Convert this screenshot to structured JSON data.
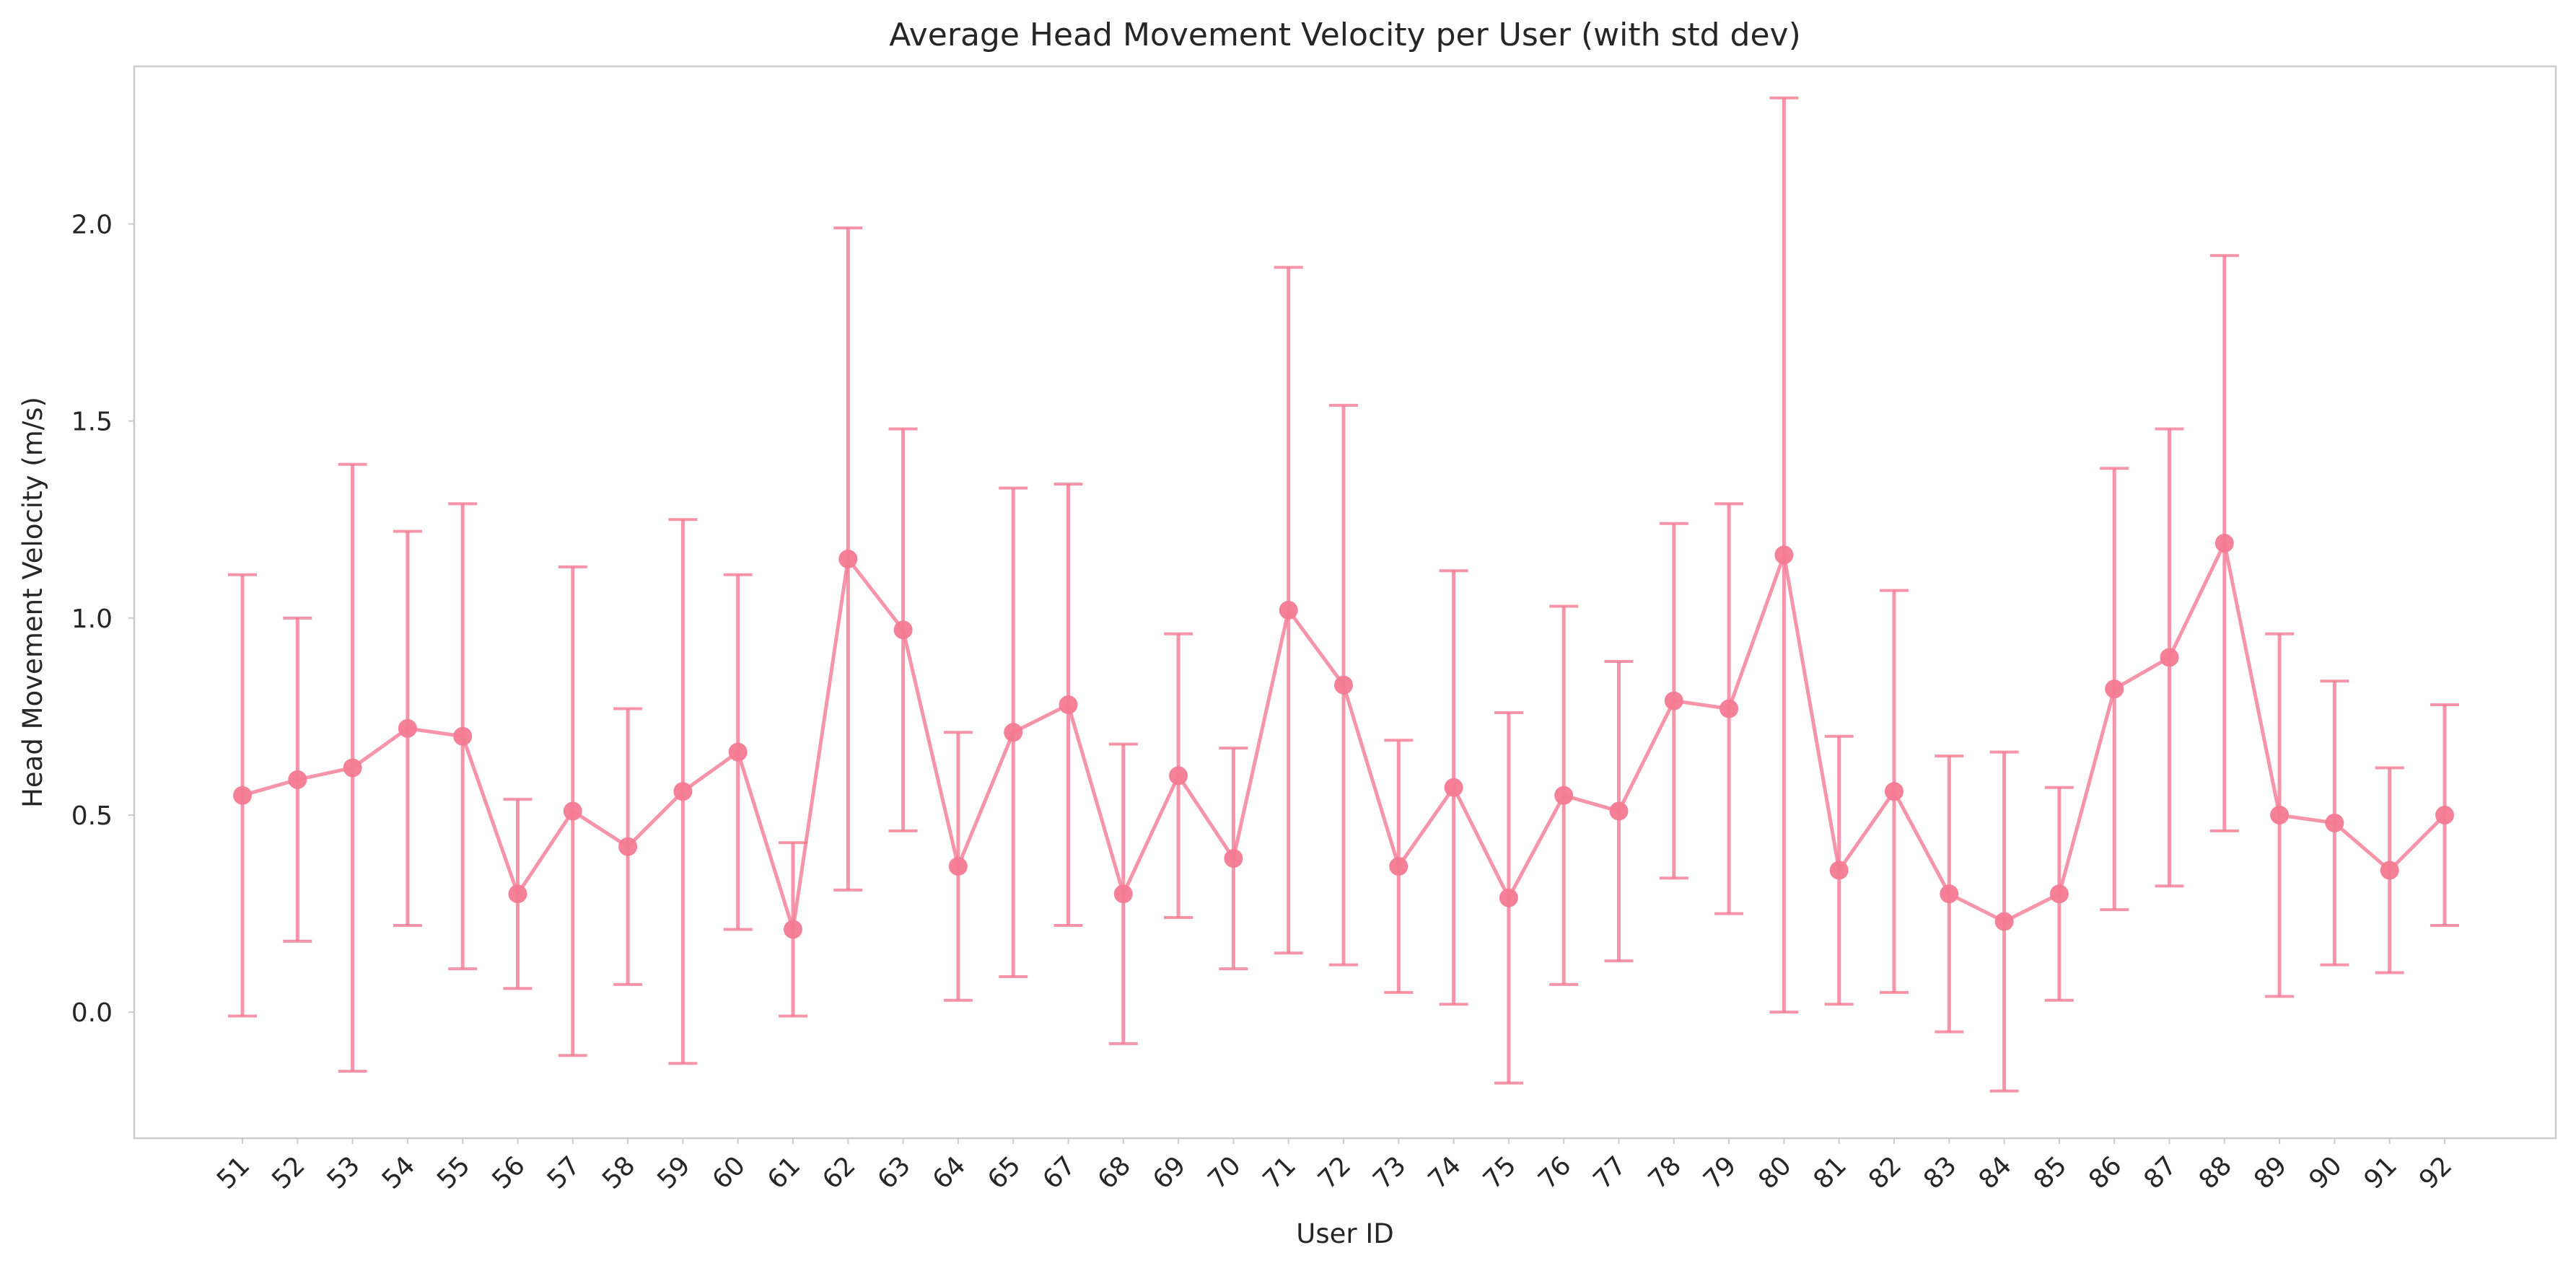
{
  "chart_data": {
    "type": "line",
    "title": "Average Head Movement Velocity per User (with std dev)",
    "xlabel": "User ID",
    "ylabel": "Head Movement Velocity (m/s)",
    "ylim": [
      -0.32,
      2.4
    ],
    "yticks": [
      "0.0",
      "0.5",
      "1.0",
      "1.5",
      "2.0"
    ],
    "ytick_values": [
      0.0,
      0.5,
      1.0,
      1.5,
      2.0
    ],
    "grid": false,
    "legend": "none",
    "colors": {
      "series": "#f47a93",
      "frame": "#cccccc"
    },
    "categories": [
      "51",
      "52",
      "53",
      "54",
      "55",
      "56",
      "57",
      "58",
      "59",
      "60",
      "61",
      "62",
      "63",
      "64",
      "65",
      "67",
      "68",
      "69",
      "70",
      "71",
      "72",
      "73",
      "74",
      "75",
      "76",
      "77",
      "78",
      "79",
      "80",
      "81",
      "82",
      "83",
      "84",
      "85",
      "86",
      "87",
      "88",
      "89",
      "90",
      "91",
      "92"
    ],
    "series": [
      {
        "values": [
          0.55,
          0.59,
          0.62,
          0.72,
          0.7,
          0.3,
          0.51,
          0.42,
          0.56,
          0.66,
          0.21,
          1.15,
          0.97,
          0.37,
          0.71,
          0.78,
          0.3,
          0.6,
          0.39,
          1.02,
          0.83,
          0.37,
          0.57,
          0.29,
          0.55,
          0.51,
          0.79,
          0.77,
          1.16,
          0.36,
          0.56,
          0.3,
          0.23,
          0.3,
          0.82,
          0.9,
          1.19,
          0.5,
          0.48,
          0.36,
          0.5
        ],
        "std": [
          0.56,
          0.41,
          0.77,
          0.5,
          0.59,
          0.24,
          0.62,
          0.35,
          0.69,
          0.45,
          0.22,
          0.84,
          0.51,
          0.34,
          0.62,
          0.56,
          0.38,
          0.36,
          0.28,
          0.87,
          0.71,
          0.32,
          0.55,
          0.47,
          0.48,
          0.38,
          0.45,
          0.52,
          1.16,
          0.34,
          0.51,
          0.35,
          0.43,
          0.27,
          0.56,
          0.58,
          0.73,
          0.46,
          0.36,
          0.26,
          0.28
        ]
      }
    ]
  }
}
